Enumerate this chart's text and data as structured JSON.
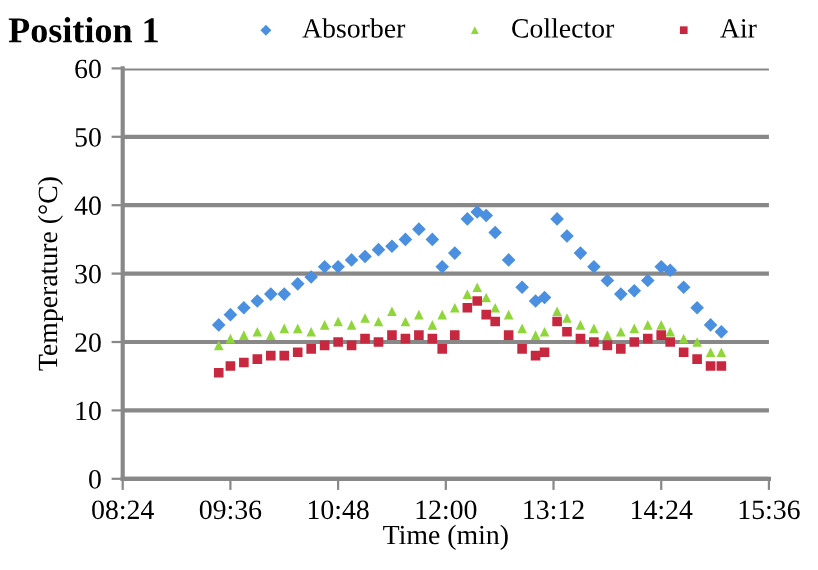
{
  "chart_data": {
    "type": "scatter",
    "title": "Position 1",
    "xlabel": "Time (min)",
    "ylabel": "Temperature (°C)",
    "xlim": [
      8.4,
      15.6
    ],
    "xticks": [
      {
        "value": 8.4,
        "label": "08:24"
      },
      {
        "value": 9.6,
        "label": "09:36"
      },
      {
        "value": 10.8,
        "label": "10:48"
      },
      {
        "value": 12.0,
        "label": "12:00"
      },
      {
        "value": 13.2,
        "label": "13:12"
      },
      {
        "value": 14.4,
        "label": "14:24"
      },
      {
        "value": 15.6,
        "label": "15:36"
      }
    ],
    "ylim": [
      0,
      60
    ],
    "yticks": [
      0,
      10,
      20,
      30,
      40,
      50,
      60
    ],
    "grid": "y",
    "legend": "top",
    "x": [
      9.47,
      9.6,
      9.75,
      9.9,
      10.05,
      10.2,
      10.35,
      10.5,
      10.65,
      10.8,
      10.95,
      11.1,
      11.25,
      11.4,
      11.55,
      11.7,
      11.85,
      11.96,
      12.1,
      12.24,
      12.35,
      12.45,
      12.55,
      12.7,
      12.85,
      13.0,
      13.1,
      13.24,
      13.35,
      13.5,
      13.65,
      13.8,
      13.95,
      14.1,
      14.25,
      14.4,
      14.5,
      14.65,
      14.8,
      14.95,
      15.07
    ],
    "series": [
      {
        "name": "Absorber",
        "color": "#4a8fe0",
        "marker": "diamond",
        "values": [
          22.5,
          24,
          25,
          26,
          27,
          27,
          28.5,
          29.5,
          31,
          31,
          32,
          32.5,
          33.5,
          34,
          35,
          36.5,
          35,
          31,
          33,
          38,
          39,
          38.5,
          36,
          32,
          28,
          26,
          26.5,
          38,
          35.5,
          33,
          31,
          29,
          27,
          27.5,
          29,
          31,
          30.5,
          28,
          25,
          22.5,
          21.5
        ]
      },
      {
        "name": "Collector",
        "color": "#8fd63a",
        "marker": "triangle",
        "values": [
          19.5,
          20.5,
          21,
          21.5,
          21,
          22,
          22,
          21.5,
          22.5,
          23,
          22.5,
          23.5,
          23,
          24.5,
          23,
          24,
          22.5,
          24,
          25,
          27,
          28,
          26.5,
          25,
          24,
          22,
          21,
          21.5,
          24.5,
          23.5,
          22.5,
          22,
          21,
          21.5,
          22,
          22.5,
          22.5,
          21.5,
          20.5,
          20,
          18.5,
          18.5
        ]
      },
      {
        "name": "Air",
        "color": "#c8283f",
        "marker": "square",
        "values": [
          15.5,
          16.5,
          17,
          17.5,
          18,
          18,
          18.5,
          19,
          19.5,
          20,
          19.5,
          20.5,
          20,
          21,
          20.5,
          21,
          20.5,
          19,
          21,
          25,
          26,
          24,
          23,
          21,
          19,
          18,
          18.5,
          23,
          21.5,
          20.5,
          20,
          19.5,
          19,
          20,
          20.5,
          21,
          20,
          18.5,
          17.5,
          16.5,
          16.5
        ]
      }
    ]
  }
}
